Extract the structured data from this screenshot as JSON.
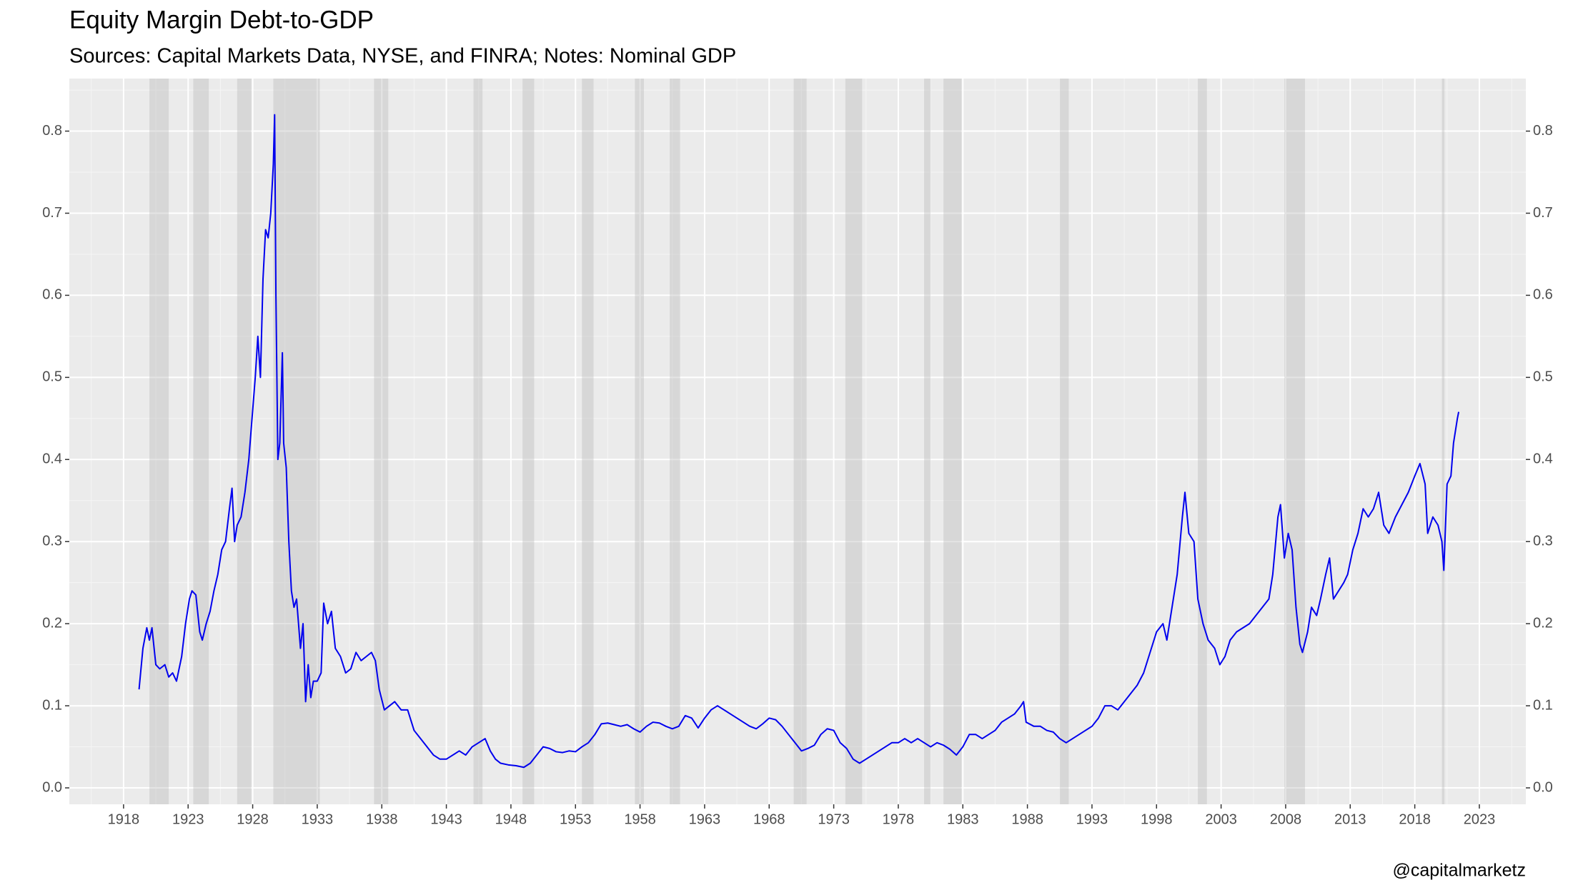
{
  "chart_data": {
    "type": "line",
    "title": "Equity Margin Debt-to-GDP",
    "subtitle": "Sources: Capital Markets Data, NYSE, and FINRA; Notes: Nominal GDP",
    "caption": "@capitalmarketz",
    "xlim": [
      1913.8,
      2026.6
    ],
    "xticks": [
      1918,
      1923,
      1928,
      1933,
      1938,
      1943,
      1948,
      1953,
      1958,
      1963,
      1968,
      1973,
      1978,
      1983,
      1988,
      1993,
      1998,
      2003,
      2008,
      2013,
      2018,
      2023
    ],
    "ylim": [
      -0.02,
      0.864
    ],
    "yticks": [
      {
        "value": 0,
        "label": "0.0"
      },
      0.1,
      0.2,
      0.3,
      0.4,
      0.5,
      0.6,
      0.7,
      0.8
    ],
    "grid": true,
    "recessions": [
      [
        1920.0,
        1921.5
      ],
      [
        1923.4,
        1924.6
      ],
      [
        1926.8,
        1927.9
      ],
      [
        1929.6,
        1933.2
      ],
      [
        1937.4,
        1938.5
      ],
      [
        1945.1,
        1945.8
      ],
      [
        1948.9,
        1949.8
      ],
      [
        1953.5,
        1954.4
      ],
      [
        1957.6,
        1958.3
      ],
      [
        1960.3,
        1961.1
      ],
      [
        1969.9,
        1970.9
      ],
      [
        1973.9,
        1975.2
      ],
      [
        1980.0,
        1980.5
      ],
      [
        1981.5,
        1982.9
      ],
      [
        1990.5,
        1991.2
      ],
      [
        2001.2,
        2001.9
      ],
      [
        2007.9,
        2009.5
      ],
      [
        2020.1,
        2020.3
      ]
    ],
    "x": [
      1919.2,
      1919.5,
      1919.8,
      1920.0,
      1920.2,
      1920.5,
      1920.8,
      1921.2,
      1921.5,
      1921.8,
      1922.1,
      1922.5,
      1922.8,
      1923.1,
      1923.3,
      1923.6,
      1923.9,
      1924.1,
      1924.4,
      1924.7,
      1925.0,
      1925.3,
      1925.6,
      1925.9,
      1926.2,
      1926.4,
      1926.6,
      1926.8,
      1927.1,
      1927.4,
      1927.7,
      1928.0,
      1928.2,
      1928.4,
      1928.6,
      1928.8,
      1929.0,
      1929.2,
      1929.4,
      1929.6,
      1929.7,
      1929.8,
      1929.95,
      1930.1,
      1930.3,
      1930.4,
      1930.6,
      1930.8,
      1931.0,
      1931.2,
      1931.4,
      1931.7,
      1931.9,
      1932.1,
      1932.3,
      1932.5,
      1932.7,
      1933.0,
      1933.3,
      1933.5,
      1933.8,
      1934.1,
      1934.4,
      1934.8,
      1935.2,
      1935.6,
      1936.0,
      1936.4,
      1936.8,
      1937.2,
      1937.5,
      1937.8,
      1938.2,
      1938.6,
      1939.0,
      1939.5,
      1940.0,
      1940.5,
      1941.0,
      1941.5,
      1942.0,
      1942.5,
      1943.0,
      1943.5,
      1944.0,
      1944.5,
      1945.0,
      1945.5,
      1946.0,
      1946.4,
      1946.8,
      1947.2,
      1947.8,
      1948.4,
      1949.0,
      1949.5,
      1950.0,
      1950.5,
      1951.0,
      1951.5,
      1952.0,
      1952.5,
      1953.0,
      1953.5,
      1954.0,
      1954.5,
      1955.0,
      1955.5,
      1956.0,
      1956.5,
      1957.0,
      1957.5,
      1958.0,
      1958.5,
      1959.0,
      1959.5,
      1960.0,
      1960.5,
      1961.0,
      1961.5,
      1962.0,
      1962.5,
      1963.0,
      1963.5,
      1964.0,
      1964.5,
      1965.0,
      1965.5,
      1966.0,
      1966.5,
      1967.0,
      1967.5,
      1968.0,
      1968.5,
      1969.0,
      1969.5,
      1970.0,
      1970.5,
      1971.0,
      1971.5,
      1972.0,
      1972.5,
      1973.0,
      1973.5,
      1974.0,
      1974.5,
      1975.0,
      1975.5,
      1976.0,
      1976.5,
      1977.0,
      1977.5,
      1978.0,
      1978.5,
      1979.0,
      1979.5,
      1980.0,
      1980.5,
      1981.0,
      1981.5,
      1982.0,
      1982.5,
      1983.0,
      1983.5,
      1984.0,
      1984.5,
      1985.0,
      1985.5,
      1986.0,
      1986.5,
      1987.0,
      1987.5,
      1987.7,
      1987.9,
      1988.5,
      1989.0,
      1989.5,
      1990.0,
      1990.5,
      1991.0,
      1991.5,
      1992.0,
      1992.5,
      1993.0,
      1993.5,
      1994.0,
      1994.5,
      1995.0,
      1995.5,
      1996.0,
      1996.5,
      1997.0,
      1997.5,
      1998.0,
      1998.5,
      1998.8,
      1999.2,
      1999.6,
      2000.0,
      2000.2,
      2000.5,
      2000.9,
      2001.2,
      2001.6,
      2002.0,
      2002.5,
      2002.9,
      2003.3,
      2003.7,
      2004.2,
      2004.7,
      2005.2,
      2005.7,
      2006.2,
      2006.7,
      2007.0,
      2007.4,
      2007.6,
      2007.9,
      2008.2,
      2008.5,
      2008.8,
      2009.1,
      2009.3,
      2009.7,
      2010.0,
      2010.4,
      2010.7,
      2011.1,
      2011.4,
      2011.7,
      2012.1,
      2012.5,
      2012.8,
      2013.2,
      2013.6,
      2014.0,
      2014.4,
      2014.8,
      2015.2,
      2015.6,
      2016.0,
      2016.5,
      2017.0,
      2017.5,
      2018.0,
      2018.4,
      2018.8,
      2019.0,
      2019.4,
      2019.8,
      2020.1,
      2020.25,
      2020.5,
      2020.8,
      2021.0,
      2021.3,
      2021.4
    ],
    "series": [
      {
        "color": "#0000ee",
        "values": [
          0.12,
          0.17,
          0.195,
          0.18,
          0.195,
          0.15,
          0.145,
          0.15,
          0.135,
          0.14,
          0.13,
          0.16,
          0.2,
          0.23,
          0.24,
          0.235,
          0.19,
          0.18,
          0.2,
          0.215,
          0.24,
          0.26,
          0.29,
          0.3,
          0.34,
          0.365,
          0.3,
          0.32,
          0.33,
          0.36,
          0.4,
          0.46,
          0.5,
          0.55,
          0.5,
          0.62,
          0.68,
          0.67,
          0.7,
          0.76,
          0.82,
          0.6,
          0.4,
          0.42,
          0.53,
          0.42,
          0.39,
          0.3,
          0.24,
          0.22,
          0.23,
          0.17,
          0.2,
          0.105,
          0.15,
          0.11,
          0.13,
          0.13,
          0.14,
          0.225,
          0.2,
          0.215,
          0.17,
          0.16,
          0.14,
          0.145,
          0.165,
          0.155,
          0.16,
          0.165,
          0.155,
          0.12,
          0.095,
          0.1,
          0.105,
          0.095,
          0.095,
          0.07,
          0.06,
          0.05,
          0.04,
          0.035,
          0.035,
          0.04,
          0.045,
          0.04,
          0.05,
          0.055,
          0.06,
          0.045,
          0.035,
          0.03,
          0.028,
          0.027,
          0.025,
          0.03,
          0.04,
          0.05,
          0.048,
          0.044,
          0.043,
          0.045,
          0.044,
          0.05,
          0.055,
          0.065,
          0.078,
          0.079,
          0.077,
          0.075,
          0.077,
          0.072,
          0.068,
          0.075,
          0.08,
          0.079,
          0.075,
          0.072,
          0.075,
          0.088,
          0.085,
          0.073,
          0.085,
          0.095,
          0.1,
          0.095,
          0.09,
          0.085,
          0.08,
          0.075,
          0.072,
          0.078,
          0.085,
          0.083,
          0.075,
          0.065,
          0.055,
          0.045,
          0.048,
          0.052,
          0.065,
          0.072,
          0.07,
          0.055,
          0.048,
          0.035,
          0.03,
          0.035,
          0.04,
          0.045,
          0.05,
          0.055,
          0.055,
          0.06,
          0.055,
          0.06,
          0.055,
          0.05,
          0.055,
          0.052,
          0.047,
          0.04,
          0.05,
          0.065,
          0.065,
          0.06,
          0.065,
          0.07,
          0.08,
          0.085,
          0.09,
          0.1,
          0.105,
          0.08,
          0.075,
          0.075,
          0.07,
          0.068,
          0.06,
          0.055,
          0.06,
          0.065,
          0.07,
          0.075,
          0.085,
          0.1,
          0.1,
          0.095,
          0.105,
          0.115,
          0.125,
          0.14,
          0.165,
          0.19,
          0.2,
          0.18,
          0.22,
          0.26,
          0.33,
          0.36,
          0.31,
          0.3,
          0.23,
          0.2,
          0.18,
          0.17,
          0.15,
          0.16,
          0.18,
          0.19,
          0.195,
          0.2,
          0.21,
          0.22,
          0.23,
          0.26,
          0.33,
          0.345,
          0.28,
          0.31,
          0.29,
          0.22,
          0.175,
          0.165,
          0.19,
          0.22,
          0.21,
          0.23,
          0.26,
          0.28,
          0.23,
          0.24,
          0.25,
          0.26,
          0.29,
          0.31,
          0.34,
          0.33,
          0.34,
          0.36,
          0.32,
          0.31,
          0.33,
          0.345,
          0.36,
          0.38,
          0.395,
          0.37,
          0.31,
          0.33,
          0.32,
          0.3,
          0.265,
          0.37,
          0.38,
          0.42,
          0.45,
          0.458
        ]
      }
    ]
  }
}
